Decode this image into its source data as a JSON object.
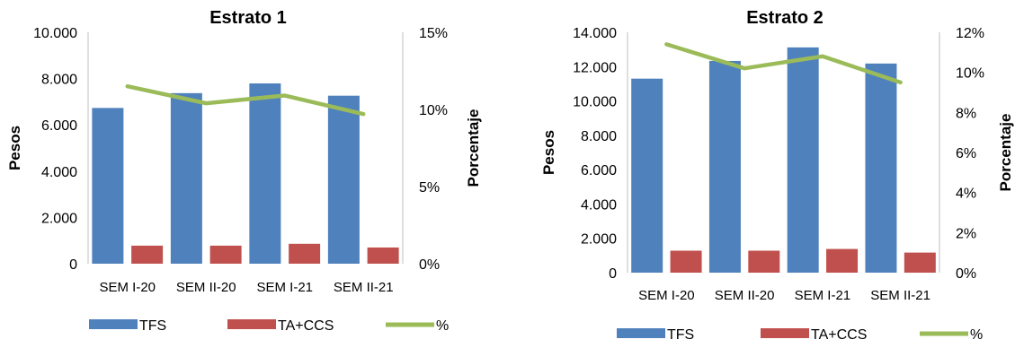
{
  "colors": {
    "tfs": "#4f81bd",
    "ta_ccs": "#c0504d",
    "pct": "#9bbb59",
    "axis": "#bfbfbf"
  },
  "chart_data": [
    {
      "type": "bar",
      "title": "Estrato 1",
      "ylabel": "Pesos",
      "y2label": "Porcentaje",
      "categories": [
        "SEM I-20",
        "SEM II-20",
        "SEM I-21",
        "SEM II-21"
      ],
      "ylim": [
        0,
        10000
      ],
      "y2lim": [
        0,
        0.15
      ],
      "yticks": [
        "0",
        "2.000",
        "4.000",
        "6.000",
        "8.000",
        "10.000"
      ],
      "y2ticks": [
        "0%",
        "5%",
        "10%",
        "15%"
      ],
      "series": [
        {
          "name": "TFS",
          "type": "bar",
          "values": [
            6730,
            7370,
            7790,
            7260
          ]
        },
        {
          "name": "TA+CCS",
          "type": "bar",
          "values": [
            780,
            780,
            860,
            700
          ]
        },
        {
          "name": "%",
          "type": "line",
          "axis": "secondary",
          "values": [
            0.115,
            0.104,
            0.109,
            0.097
          ]
        }
      ],
      "legend": "bottom"
    },
    {
      "type": "bar",
      "title": "Estrato 2",
      "ylabel": "Pesos",
      "y2label": "Porcentaje",
      "categories": [
        "SEM I-20",
        "SEM II-20",
        "SEM I-21",
        "SEM II-21"
      ],
      "ylim": [
        0,
        14000
      ],
      "y2lim": [
        0,
        0.12
      ],
      "yticks": [
        "0",
        "2.000",
        "4.000",
        "6.000",
        "8.000",
        "10.000",
        "12.000",
        "14.000"
      ],
      "y2ticks": [
        "0%",
        "2%",
        "4%",
        "6%",
        "8%",
        "10%",
        "12%"
      ],
      "series": [
        {
          "name": "TFS",
          "type": "bar",
          "values": [
            11300,
            12330,
            13120,
            12180
          ]
        },
        {
          "name": "TA+CCS",
          "type": "bar",
          "values": [
            1280,
            1280,
            1380,
            1170
          ]
        },
        {
          "name": "%",
          "type": "line",
          "axis": "secondary",
          "values": [
            0.114,
            0.102,
            0.108,
            0.095
          ]
        }
      ],
      "legend": "bottom"
    }
  ]
}
